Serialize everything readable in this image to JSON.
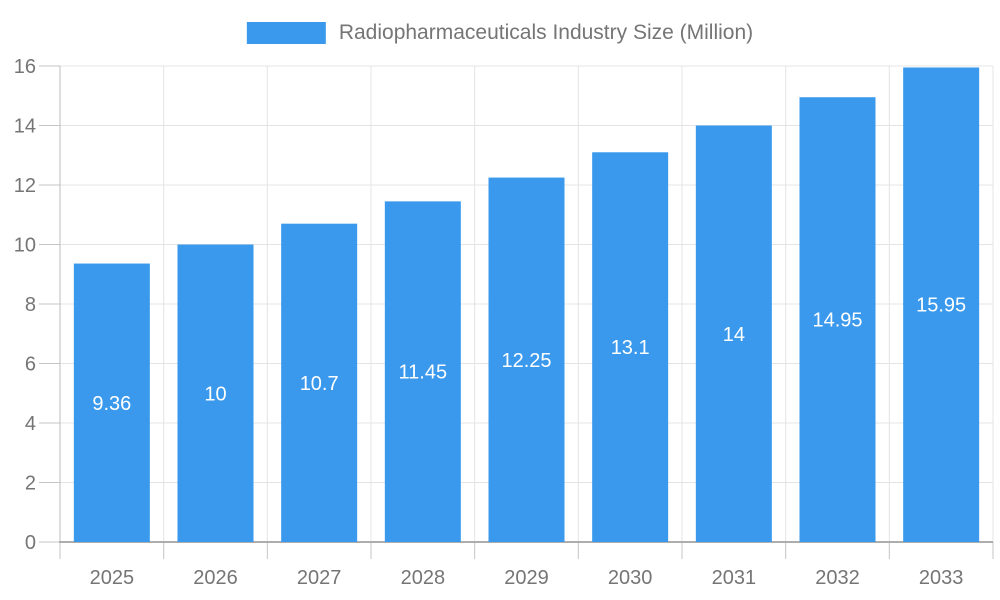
{
  "chart_data": {
    "type": "bar",
    "title": "Radiopharmaceuticals Industry Size (Million)",
    "categories": [
      "2025",
      "2026",
      "2027",
      "2028",
      "2029",
      "2030",
      "2031",
      "2032",
      "2033"
    ],
    "values": [
      9.36,
      10,
      10.7,
      11.45,
      12.25,
      13.1,
      14,
      14.95,
      15.95
    ],
    "bar_labels": [
      "9.36",
      "10",
      "10.7",
      "11.45",
      "12.25",
      "13.1",
      "14",
      "14.95",
      "15.95"
    ],
    "xlabel": "",
    "ylabel": "",
    "ylim": [
      0,
      16
    ],
    "ytick_step": 2,
    "ytick_labels": [
      "0",
      "2",
      "4",
      "6",
      "8",
      "10",
      "12",
      "14",
      "16"
    ],
    "legend_position": "top-center",
    "grid": "horizontal and vertical gridlines on",
    "colors": {
      "bar": "#3A99EC",
      "bar_label_text": "#FFFFFF",
      "axis_text": "#757575",
      "gridline": "#E4E4E4",
      "axis_line": "#ADADAD",
      "tick": "#C4C4C4",
      "y_axis_line": "#BDBDBD",
      "background": "#FFFFFF"
    }
  }
}
